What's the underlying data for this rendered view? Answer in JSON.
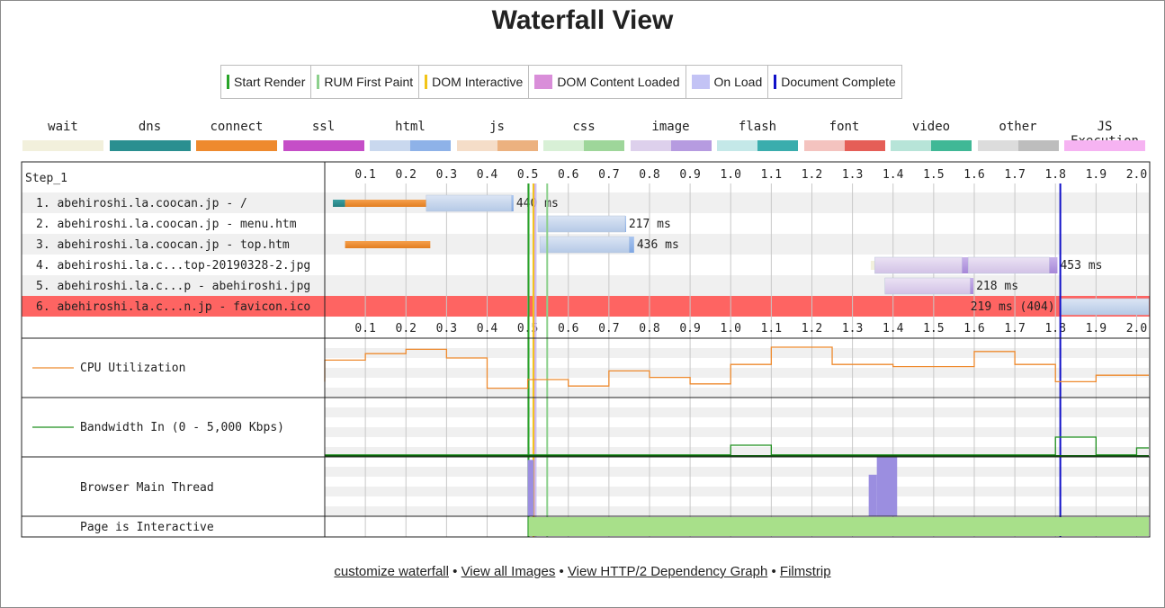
{
  "title": "Waterfall View",
  "legend": [
    {
      "label": "Start Render",
      "color": "#28a428",
      "kind": "line"
    },
    {
      "label": "RUM First Paint",
      "color": "#8cd08c",
      "kind": "line"
    },
    {
      "label": "DOM Interactive",
      "color": "#f2c417",
      "kind": "line"
    },
    {
      "label": "DOM Content Loaded",
      "color": "#d98ed9",
      "kind": "box"
    },
    {
      "label": "On Load",
      "color": "#c3c3f5",
      "kind": "box"
    },
    {
      "label": "Document Complete",
      "color": "#1010c8",
      "kind": "line"
    }
  ],
  "request_types": [
    {
      "label": "wait",
      "colors": [
        "#f2f0dc",
        "#f2f0dc"
      ]
    },
    {
      "label": "dns",
      "colors": [
        "#2a8f90",
        "#2a8f90"
      ]
    },
    {
      "label": "connect",
      "colors": [
        "#ee8a2e",
        "#ee8a2e"
      ]
    },
    {
      "label": "ssl",
      "colors": [
        "#c54ec7",
        "#c54ec7"
      ]
    },
    {
      "label": "html",
      "colors": [
        "#c9d8ee",
        "#8eb2e8"
      ]
    },
    {
      "label": "js",
      "colors": [
        "#f5ddc8",
        "#ecb17f"
      ]
    },
    {
      "label": "css",
      "colors": [
        "#d8f0d6",
        "#9ed69a"
      ]
    },
    {
      "label": "image",
      "colors": [
        "#ddd0ec",
        "#b69be0"
      ]
    },
    {
      "label": "flash",
      "colors": [
        "#c4e8e8",
        "#3aadad"
      ]
    },
    {
      "label": "font",
      "colors": [
        "#f4c3bf",
        "#e55e57"
      ]
    },
    {
      "label": "video",
      "colors": [
        "#b7e4d8",
        "#40b896"
      ]
    },
    {
      "label": "other",
      "colors": [
        "#dcdcdc",
        "#bdbdbd"
      ]
    },
    {
      "label": "JS Execution",
      "colors": [
        "#f6b3f2",
        "#f6b3f2"
      ]
    }
  ],
  "chart_data": {
    "type": "waterfall",
    "step_label": "Step_1",
    "x_ticks": [
      "0.1",
      "0.2",
      "0.3",
      "0.4",
      "0.5",
      "0.6",
      "0.7",
      "0.8",
      "0.9",
      "1.0",
      "1.1",
      "1.2",
      "1.3",
      "1.4",
      "1.5",
      "1.6",
      "1.7",
      "1.8",
      "1.9",
      "2.0"
    ],
    "x_range_seconds": [
      0,
      2.03
    ],
    "requests": [
      {
        "label": "1. abehiroshi.la.coocan.jp - /",
        "time_label": "440 ms",
        "highlight": false,
        "segments": [
          {
            "type": "dns",
            "start": 0.02,
            "end": 0.05
          },
          {
            "type": "connect",
            "start": 0.05,
            "end": 0.25
          },
          {
            "type": "html_wait",
            "start": 0.25,
            "end": 0.46
          },
          {
            "type": "html_recv",
            "start": 0.46,
            "end": 0.465
          }
        ]
      },
      {
        "label": "2. abehiroshi.la.coocan.jp - menu.htm",
        "time_label": "217 ms",
        "highlight": false,
        "segments": [
          {
            "type": "html_wait",
            "start": 0.525,
            "end": 0.74
          },
          {
            "type": "html_recv",
            "start": 0.74,
            "end": 0.742
          }
        ]
      },
      {
        "label": "3. abehiroshi.la.coocan.jp - top.htm",
        "time_label": "436 ms",
        "highlight": false,
        "segments": [
          {
            "type": "connect",
            "start": 0.05,
            "end": 0.26
          },
          {
            "type": "html_wait",
            "start": 0.53,
            "end": 0.75
          },
          {
            "type": "html_recv",
            "start": 0.75,
            "end": 0.762
          }
        ]
      },
      {
        "label": "4. abehiroshi.la.c...top-20190328-2.jpg",
        "time_label": "453 ms",
        "highlight": false,
        "segments": [
          {
            "type": "wait",
            "start": 1.345,
            "end": 1.355
          },
          {
            "type": "image_wait",
            "start": 1.355,
            "end": 1.57
          },
          {
            "type": "image_recv",
            "start": 1.57,
            "end": 1.585
          },
          {
            "type": "image_wait",
            "start": 1.585,
            "end": 1.785
          },
          {
            "type": "image_recv",
            "start": 1.785,
            "end": 1.805
          }
        ]
      },
      {
        "label": "5. abehiroshi.la.c...p - abehiroshi.jpg",
        "time_label": "218 ms",
        "highlight": false,
        "segments": [
          {
            "type": "image_wait",
            "start": 1.38,
            "end": 1.59
          },
          {
            "type": "image_recv",
            "start": 1.59,
            "end": 1.598
          }
        ]
      },
      {
        "label": "6. abehiroshi.la.c...n.jp - favicon.ico",
        "time_label": "219 ms (404)",
        "highlight": true,
        "segments": [
          {
            "type": "html_wait",
            "start": 1.812,
            "end": 2.03
          }
        ]
      }
    ],
    "markers": {
      "start_render": 0.502,
      "rum_first_paint": 0.548,
      "dom_interactive": 0.514,
      "dom_content_loaded": [
        0.515,
        0.52
      ],
      "on_load": [
        0.518,
        0.522
      ],
      "document_complete": 1.812
    },
    "cpu": {
      "label": "CPU Utilization",
      "points": [
        [
          0,
          0.2
        ],
        [
          0,
          0.7
        ],
        [
          0.1,
          0.7
        ],
        [
          0.1,
          0.85
        ],
        [
          0.2,
          0.85
        ],
        [
          0.2,
          0.95
        ],
        [
          0.3,
          0.95
        ],
        [
          0.3,
          0.75
        ],
        [
          0.4,
          0.75
        ],
        [
          0.4,
          0.05
        ],
        [
          0.5,
          0.05
        ],
        [
          0.5,
          0.25
        ],
        [
          0.6,
          0.25
        ],
        [
          0.6,
          0.1
        ],
        [
          0.7,
          0.1
        ],
        [
          0.7,
          0.45
        ],
        [
          0.8,
          0.45
        ],
        [
          0.8,
          0.3
        ],
        [
          0.9,
          0.3
        ],
        [
          0.9,
          0.15
        ],
        [
          1.0,
          0.15
        ],
        [
          1.0,
          0.6
        ],
        [
          1.1,
          0.6
        ],
        [
          1.1,
          1.0
        ],
        [
          1.25,
          1.0
        ],
        [
          1.25,
          0.6
        ],
        [
          1.4,
          0.6
        ],
        [
          1.4,
          0.55
        ],
        [
          1.6,
          0.55
        ],
        [
          1.6,
          0.9
        ],
        [
          1.7,
          0.9
        ],
        [
          1.7,
          0.6
        ],
        [
          1.8,
          0.6
        ],
        [
          1.8,
          0.2
        ],
        [
          1.9,
          0.2
        ],
        [
          1.9,
          0.35
        ],
        [
          2.03,
          0.35
        ]
      ]
    },
    "bandwidth": {
      "label": "Bandwidth In (0 - 5,000 Kbps)",
      "points": [
        [
          0,
          0.02
        ],
        [
          1.0,
          0.02
        ],
        [
          1.0,
          0.2
        ],
        [
          1.1,
          0.2
        ],
        [
          1.1,
          0.02
        ],
        [
          1.8,
          0.02
        ],
        [
          1.8,
          0.35
        ],
        [
          1.9,
          0.35
        ],
        [
          1.9,
          0.02
        ],
        [
          2.0,
          0.02
        ],
        [
          2.0,
          0.15
        ],
        [
          2.03,
          0.15
        ]
      ]
    },
    "main_thread": {
      "label": "Browser Main Thread",
      "bursts": [
        [
          0.5,
          0.515,
          0.95
        ],
        [
          1.34,
          1.36,
          0.7
        ],
        [
          1.36,
          1.41,
          1.0
        ]
      ]
    },
    "interactive": {
      "label": "Page is Interactive",
      "start": 0.502,
      "end": 2.03
    }
  },
  "footer": {
    "links": [
      "customize waterfall",
      "View all Images",
      "View HTTP/2 Dependency Graph",
      "Filmstrip"
    ],
    "separator": "•"
  }
}
